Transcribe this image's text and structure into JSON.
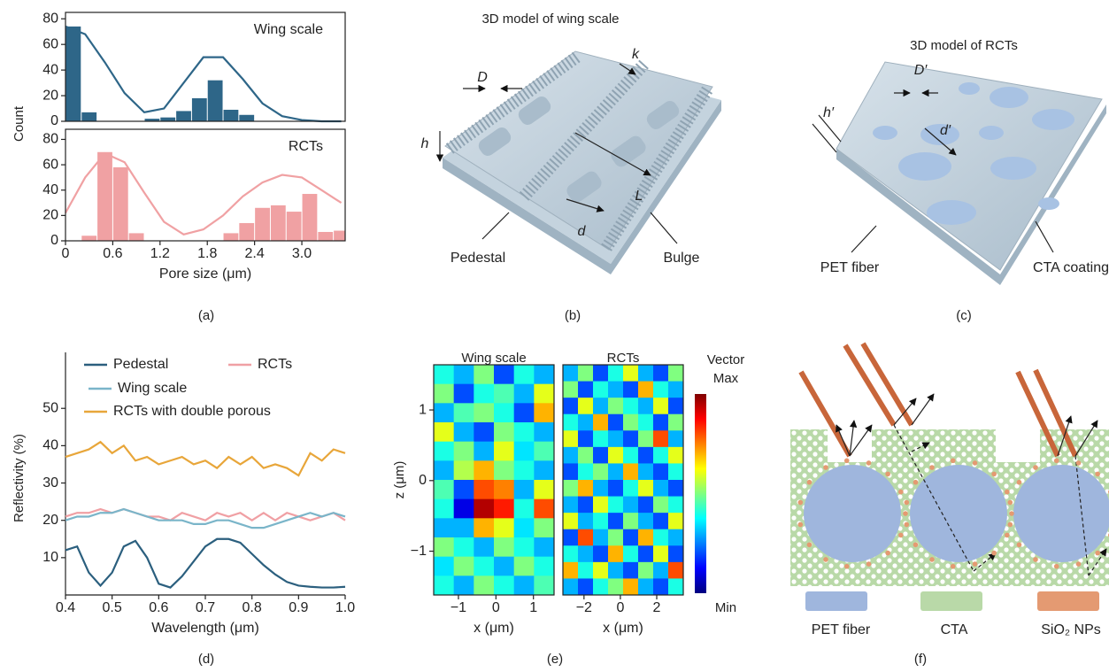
{
  "panel_labels": [
    "(a)",
    "(b)",
    "(c)",
    "(d)",
    "(e)",
    "(f)"
  ],
  "chart_data": [
    {
      "type": "histogram",
      "label": "Wing scale",
      "ylabel": "Count",
      "color": "#2e6688",
      "bins": [
        0,
        0.2,
        0.4,
        0.6,
        0.8,
        1,
        1.2,
        1.4,
        1.6,
        1.8,
        2,
        2.2,
        2.4,
        2.6,
        2.8,
        3,
        3.2,
        3.4,
        3.55
      ],
      "values": [
        74,
        7,
        0,
        0,
        0,
        2,
        3,
        8,
        18,
        32,
        9,
        5,
        0,
        0,
        0,
        0,
        0,
        0
      ],
      "fit": {
        "x": [
          0,
          0.25,
          0.5,
          0.75,
          1,
          1.25,
          1.5,
          1.75,
          2,
          2.25,
          2.5,
          2.75,
          3,
          3.25,
          3.5
        ],
        "values": [
          74,
          68,
          46,
          22,
          7,
          10,
          30,
          50,
          50,
          33,
          14,
          4,
          1,
          0,
          0
        ]
      },
      "xlim": [
        0,
        3.55
      ],
      "ylim": [
        0,
        85
      ],
      "yticks": [
        0,
        20,
        40,
        60,
        80
      ]
    },
    {
      "type": "histogram",
      "label": "RCTs",
      "xlabel": "Pore size (μm)",
      "color": "#f0a1a3",
      "bins": [
        0,
        0.2,
        0.4,
        0.6,
        0.8,
        1,
        1.2,
        1.4,
        1.6,
        1.8,
        2,
        2.2,
        2.4,
        2.6,
        2.8,
        3,
        3.2,
        3.4,
        3.55
      ],
      "values": [
        0,
        4,
        70,
        58,
        6,
        0,
        0,
        0,
        0,
        0,
        6,
        14,
        26,
        28,
        23,
        37,
        7,
        8
      ],
      "fit": {
        "x": [
          0,
          0.25,
          0.5,
          0.75,
          1,
          1.25,
          1.5,
          1.75,
          2,
          2.25,
          2.5,
          2.75,
          3,
          3.25,
          3.5
        ],
        "values": [
          22,
          50,
          69,
          62,
          38,
          15,
          5,
          9,
          20,
          35,
          46,
          52,
          50,
          40,
          30
        ]
      },
      "xlim": [
        0,
        3.55
      ],
      "ylim": [
        0,
        88
      ],
      "yticks": [
        0,
        20,
        40,
        60,
        80
      ],
      "xticks": [
        0,
        0.6,
        1.2,
        1.8,
        2.4,
        {
          "value": 3,
          "label": "3.0"
        }
      ]
    },
    {
      "type": "line",
      "xlabel": "Wavelength (μm)",
      "ylabel": "Reflectivity (%)",
      "x": [
        0.4,
        0.425,
        0.45,
        0.475,
        0.5,
        0.525,
        0.55,
        0.575,
        0.6,
        0.625,
        0.65,
        0.675,
        0.7,
        0.725,
        0.75,
        0.775,
        0.8,
        0.825,
        0.85,
        0.875,
        0.9,
        0.925,
        0.95,
        0.975,
        1.0
      ],
      "series": [
        {
          "name": "Pedestal",
          "color": "#2b5f7e",
          "values": [
            12,
            13,
            6,
            2.5,
            6,
            13,
            14.5,
            10,
            3,
            2,
            5,
            9,
            13,
            15,
            15,
            14,
            11,
            8,
            5.5,
            3.5,
            2.5,
            2.2,
            2,
            2,
            2.2
          ]
        },
        {
          "name": "RCTs",
          "color": "#f0a0a4",
          "values": [
            21,
            22,
            22,
            23,
            22,
            23,
            22,
            21,
            21,
            20,
            22,
            21,
            20,
            22,
            21,
            22,
            20,
            22,
            20,
            22,
            21,
            20,
            21,
            22,
            20
          ]
        },
        {
          "name": "Wing scale",
          "color": "#7ab5c9",
          "values": [
            20,
            21,
            21,
            22,
            22,
            23,
            22,
            21,
            20,
            20,
            20,
            19,
            19,
            20,
            20,
            19,
            18,
            18,
            19,
            20,
            21,
            22,
            21,
            22,
            21
          ]
        },
        {
          "name": "RCTs with double porous",
          "color": "#e8a63a",
          "values": [
            37,
            38,
            39,
            41,
            38,
            40,
            36,
            37,
            35,
            36,
            37,
            35,
            36,
            34,
            37,
            35,
            37,
            34,
            35,
            34,
            32,
            38,
            36,
            39,
            38
          ]
        }
      ],
      "xlim": [
        0.4,
        1.0
      ],
      "ylim": [
        0,
        65
      ],
      "yticks": [
        10,
        20,
        30,
        40,
        50
      ],
      "xticks": [
        0.4,
        0.5,
        0.6,
        0.7,
        0.8,
        0.9,
        {
          "value": 1,
          "label": "1.0"
        }
      ]
    },
    {
      "type": "heatmap",
      "title": "Wing scale",
      "xlabel": "x (μm)",
      "ylabel": "z (μm)",
      "xlim": [
        -1.66,
        1.55
      ],
      "ylim": [
        -1.62,
        1.64
      ],
      "xticks": [
        {
          "value": -1,
          "label": "−1"
        },
        0,
        1
      ],
      "yticks": [
        {
          "value": -1,
          "label": "−1"
        },
        0,
        1
      ],
      "values": [
        [
          0.4,
          0.3,
          0.5,
          0.2,
          0.4,
          0.3
        ],
        [
          0.5,
          0.2,
          0.4,
          0.45,
          0.3,
          0.6
        ],
        [
          0.3,
          0.45,
          0.5,
          0.4,
          0.2,
          0.7
        ],
        [
          0.6,
          0.3,
          0.2,
          0.5,
          0.4,
          0.3
        ],
        [
          0.4,
          0.5,
          0.3,
          0.6,
          0.35,
          0.45
        ],
        [
          0.3,
          0.55,
          0.7,
          0.5,
          0.4,
          0.3
        ],
        [
          0.45,
          0.2,
          0.8,
          0.75,
          0.3,
          0.6
        ],
        [
          0.4,
          0.1,
          0.95,
          0.85,
          0.4,
          0.8
        ],
        [
          0.3,
          0.3,
          0.7,
          0.6,
          0.35,
          0.5
        ],
        [
          0.5,
          0.4,
          0.3,
          0.5,
          0.4,
          0.3
        ],
        [
          0.35,
          0.5,
          0.4,
          0.3,
          0.5,
          0.4
        ],
        [
          0.4,
          0.3,
          0.5,
          0.4,
          0.3,
          0.45
        ]
      ]
    },
    {
      "type": "heatmap",
      "title": "RCTs",
      "xlabel": "x (μm)",
      "xlim": [
        -3.16,
        3.46
      ],
      "ylim": [
        -1.62,
        1.64
      ],
      "xticks": [
        {
          "value": -2,
          "label": "−2"
        },
        0,
        2
      ],
      "colorbar": {
        "title": "Vector",
        "max_label": "Max",
        "min_label": "Min"
      },
      "values": [
        [
          0.3,
          0.5,
          0.2,
          0.4,
          0.6,
          0.3,
          0.2,
          0.5
        ],
        [
          0.5,
          0.2,
          0.4,
          0.3,
          0.2,
          0.7,
          0.4,
          0.3
        ],
        [
          0.2,
          0.6,
          0.3,
          0.5,
          0.4,
          0.3,
          0.6,
          0.2
        ],
        [
          0.4,
          0.3,
          0.7,
          0.2,
          0.5,
          0.4,
          0.2,
          0.5
        ],
        [
          0.6,
          0.2,
          0.4,
          0.3,
          0.2,
          0.5,
          0.8,
          0.3
        ],
        [
          0.3,
          0.5,
          0.2,
          0.6,
          0.4,
          0.2,
          0.4,
          0.6
        ],
        [
          0.2,
          0.4,
          0.5,
          0.3,
          0.7,
          0.3,
          0.2,
          0.4
        ],
        [
          0.5,
          0.7,
          0.3,
          0.2,
          0.4,
          0.6,
          0.3,
          0.2
        ],
        [
          0.3,
          0.2,
          0.6,
          0.4,
          0.3,
          0.2,
          0.5,
          0.4
        ],
        [
          0.6,
          0.3,
          0.4,
          0.2,
          0.5,
          0.3,
          0.2,
          0.6
        ],
        [
          0.2,
          0.8,
          0.3,
          0.5,
          0.2,
          0.7,
          0.4,
          0.3
        ],
        [
          0.4,
          0.3,
          0.2,
          0.7,
          0.4,
          0.2,
          0.6,
          0.2
        ],
        [
          0.7,
          0.4,
          0.6,
          0.3,
          0.2,
          0.5,
          0.3,
          0.8
        ],
        [
          0.3,
          0.2,
          0.4,
          0.5,
          0.7,
          0.3,
          0.2,
          0.4
        ]
      ]
    }
  ],
  "diagrams": {
    "b": {
      "title": "3D model of wing scale",
      "D": "D",
      "k": "k",
      "h": "h",
      "L": "L",
      "d": "d",
      "pedestal": "Pedestal",
      "bulge": "Bulge"
    },
    "c": {
      "title": "3D model of RCTs",
      "D": "D′",
      "h": "h′",
      "d": "d′",
      "fiber": "PET fiber",
      "coating": "CTA coating"
    },
    "f": {
      "legend": [
        "PET fiber",
        "CTA",
        "SiO₂ NPs"
      ]
    }
  }
}
